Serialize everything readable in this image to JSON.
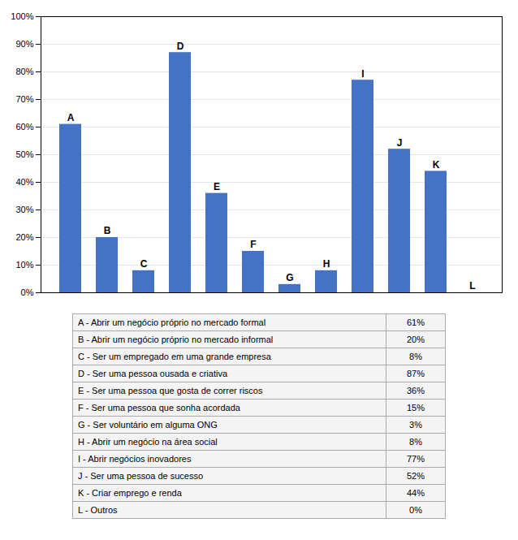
{
  "chart_data": {
    "type": "bar",
    "categories": [
      "A",
      "B",
      "C",
      "D",
      "E",
      "F",
      "G",
      "H",
      "I",
      "J",
      "K",
      "L"
    ],
    "values": [
      61,
      20,
      8,
      87,
      36,
      15,
      3,
      8,
      77,
      52,
      44,
      0
    ],
    "color": "#4472C4",
    "ylim": [
      0,
      100
    ],
    "yticks": [
      {
        "value": 0,
        "label": "0%"
      },
      {
        "value": 10,
        "label": "10%"
      },
      {
        "value": 20,
        "label": "20%"
      },
      {
        "value": 30,
        "label": "30%"
      },
      {
        "value": 40,
        "label": "40%"
      },
      {
        "value": 50,
        "label": "50%"
      },
      {
        "value": 60,
        "label": "60%"
      },
      {
        "value": 70,
        "label": "70%"
      },
      {
        "value": 80,
        "label": "80%"
      },
      {
        "value": 90,
        "label": "90%"
      },
      {
        "value": 100,
        "label": "100%"
      }
    ],
    "grid": true,
    "tick_labels": "y",
    "table": [
      [
        "A - Abrir um negócio próprio no mercado formal",
        "61%"
      ],
      [
        "B - Abrir um negócio próprio no mercado informal",
        "20%"
      ],
      [
        "C - Ser um empregado em uma grande empresa",
        "8%"
      ],
      [
        "D - Ser uma pessoa ousada e criativa",
        "87%"
      ],
      [
        "E - Ser uma pessoa que gosta de correr riscos",
        "36%"
      ],
      [
        "F - Ser uma pessoa que sonha acordada",
        "15%"
      ],
      [
        "G - Ser voluntário em alguma ONG",
        "3%"
      ],
      [
        "H - Abrir um negócio na área social",
        "8%"
      ],
      [
        "I - Abrir negócios inovadores",
        "77%"
      ],
      [
        "J - Ser uma pessoa de sucesso",
        "52%"
      ],
      [
        "K - Criar emprego e renda",
        "44%"
      ],
      [
        "L - Outros",
        "0%"
      ]
    ]
  }
}
